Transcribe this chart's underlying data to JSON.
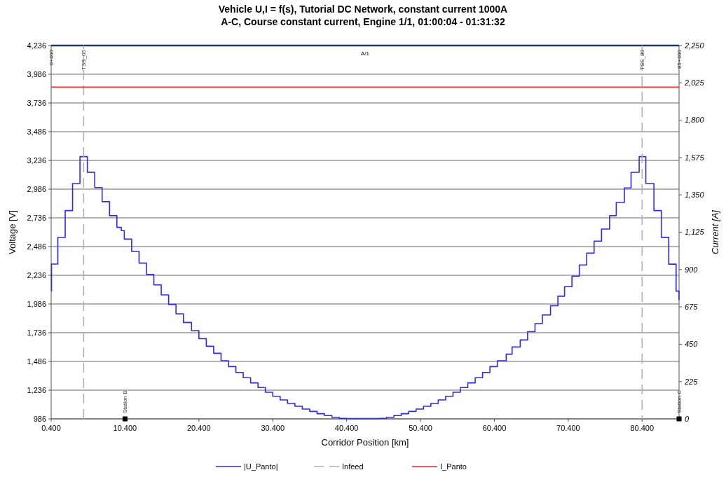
{
  "chart_data": {
    "type": "step",
    "title": "Vehicle U,I = f(s), Tutorial DC Network, constant current 1000A",
    "subtitle": "A-C, Course constant current, Engine 1/1, 01:00:04 - 01:31:32",
    "xlabel": "Corridor Position [km]",
    "ylabel": "Voltage [V]",
    "y2label": "Current [A]",
    "xlim": [
      0.4,
      85.4
    ],
    "xticks": [
      {
        "value": 0.4,
        "label": "0.400"
      },
      {
        "value": 10.4,
        "label": "10.400"
      },
      {
        "value": 20.4,
        "label": "20.400"
      },
      {
        "value": 30.4,
        "label": "30.400"
      },
      {
        "value": 40.4,
        "label": "40.400"
      },
      {
        "value": 50.4,
        "label": "50.400"
      },
      {
        "value": 60.4,
        "label": "60.400"
      },
      {
        "value": 70.4,
        "label": "70.400"
      },
      {
        "value": 80.4,
        "label": "80.400"
      }
    ],
    "ylim": [
      986,
      4236
    ],
    "yticks": [
      986,
      {
        "value": 1236,
        "label": "1,236"
      },
      {
        "value": 1486,
        "label": "1,486"
      },
      {
        "value": 1736,
        "label": "1,736"
      },
      {
        "value": 1986,
        "label": "1,986"
      },
      {
        "value": 2236,
        "label": "2,236"
      },
      {
        "value": 2486,
        "label": "2,486"
      },
      {
        "value": 2736,
        "label": "2,736"
      },
      {
        "value": 2986,
        "label": "2,986"
      },
      {
        "value": 3236,
        "label": "3,236"
      },
      {
        "value": 3486,
        "label": "3,486"
      },
      {
        "value": 3736,
        "label": "3,736"
      },
      {
        "value": 3986,
        "label": "3,986"
      },
      {
        "value": 4236,
        "label": "4,236"
      }
    ],
    "y2lim": [
      0,
      2250
    ],
    "y2ticks": [
      0,
      225,
      450,
      675,
      900,
      {
        "value": 1125,
        "label": "1,125"
      },
      {
        "value": 1350,
        "label": "1,350"
      },
      {
        "value": 1575,
        "label": "1,575"
      },
      {
        "value": 1800,
        "label": "1,800"
      },
      {
        "value": 2025,
        "label": "2,025"
      },
      {
        "value": 2250,
        "label": "2,250"
      }
    ],
    "grid": "y",
    "legend": "bottom",
    "series": [
      {
        "name": "|U_Panto|",
        "color": "#2b2bf0",
        "x": [
          0.4,
          0.45,
          1.3,
          2.3,
          3.3,
          4.3,
          5.3,
          6.3,
          7.3,
          8.3,
          9.3,
          9.9,
          10.3,
          11.3,
          12.3,
          13.3,
          14.3,
          15.3,
          16.3,
          17.3,
          18.3,
          19.4,
          20.4,
          21.4,
          22.4,
          23.4,
          24.4,
          25.4,
          26.4,
          27.4,
          28.4,
          29.4,
          30.4,
          31.4,
          32.4,
          33.4,
          34.4,
          35.4,
          36.4,
          37.4,
          38.4,
          39.4,
          40.4,
          44.8,
          45.8,
          46.8,
          47.8,
          48.8,
          49.8,
          50.8,
          51.8,
          52.8,
          53.8,
          54.8,
          55.8,
          56.8,
          57.8,
          58.8,
          59.8,
          60.8,
          62.0,
          62.8,
          63.9,
          64.9,
          65.9,
          66.9,
          68.0,
          69.0,
          69.9,
          70.9,
          71.9,
          72.9,
          73.9,
          74.9,
          76.0,
          76.9,
          78.0,
          78.9,
          80.0,
          80.9,
          82.0,
          83.0,
          84.0,
          85.0,
          85.4
        ],
        "values": [
          2098,
          2334,
          2565,
          2799,
          3035,
          3269,
          3133,
          3000,
          2877,
          2755,
          2653,
          2625,
          2551,
          2443,
          2342,
          2243,
          2152,
          2065,
          1982,
          1901,
          1825,
          1754,
          1684,
          1618,
          1557,
          1492,
          1441,
          1390,
          1344,
          1299,
          1259,
          1218,
          1183,
          1151,
          1120,
          1096,
          1071,
          1051,
          1031,
          1015,
          1000,
          990,
          988,
          990,
          1000,
          1015,
          1031,
          1051,
          1071,
          1096,
          1120,
          1151,
          1183,
          1218,
          1259,
          1299,
          1344,
          1390,
          1441,
          1492,
          1549,
          1612,
          1673,
          1745,
          1815,
          1891,
          1971,
          2054,
          2137,
          2228,
          2326,
          2429,
          2533,
          2638,
          2755,
          2870,
          2997,
          3132,
          3269,
          3035,
          2799,
          2566,
          2333,
          2098,
          2020
        ]
      },
      {
        "name": "Infeed",
        "type": "line",
        "line_style": "dashed",
        "color": "#b0b0b0",
        "x": [
          4.8,
          4.8,
          42.6,
          80.4,
          80.4
        ],
        "values": [
          986,
          4236,
          null,
          4236,
          986
        ]
      },
      {
        "name": "I_Panto",
        "type": "line",
        "axis": "y2",
        "color": "#ff2020",
        "x": [
          0.4,
          85.4
        ],
        "values": [
          2000,
          2000
        ]
      },
      {
        "type": "scatter",
        "marker": "square",
        "color": "#000000",
        "x": [
          10.4,
          85.4
        ],
        "values": [
          986,
          986
        ]
      }
    ],
    "ref_lines": [
      {
        "axis": "y",
        "value": 4236,
        "label": "A/1",
        "color": "#1f3a60"
      }
    ],
    "annotations": [
      {
        "text": "0+400",
        "x": 0.4,
        "y": 4236
      },
      {
        "text": "TSS_05",
        "x": 4.8,
        "y": 4236
      },
      {
        "text": "TSS_80",
        "x": 80.4,
        "y": 4236
      },
      {
        "text": "85+400",
        "x": 85.4,
        "y": 4236
      },
      {
        "text": "Station B",
        "x": 10.4,
        "y": 986
      },
      {
        "text": "Station C",
        "x": 85.4,
        "y": 986
      }
    ]
  }
}
